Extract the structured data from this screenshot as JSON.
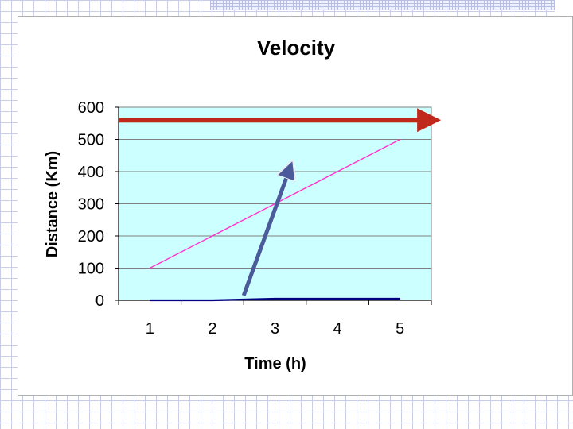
{
  "chart_data": {
    "type": "line",
    "title": "Velocity",
    "xlabel": "Time (h)",
    "ylabel": "Distance (Km)",
    "categories": [
      "1",
      "2",
      "3",
      "4",
      "5"
    ],
    "ylim": [
      0,
      600
    ],
    "yticks": [
      "0",
      "100",
      "200",
      "300",
      "400",
      "500",
      "600"
    ],
    "grid": true,
    "plot_bg_color": "#ccffff",
    "series": [
      {
        "name": "",
        "color": "#ff33cc",
        "values": [
          100,
          200,
          300,
          400,
          500
        ]
      },
      {
        "name": "",
        "color": "#000080",
        "values": [
          0,
          0,
          5,
          5,
          5
        ]
      }
    ],
    "annotations": [
      {
        "type": "arrow",
        "color": "#c0281c",
        "from": [
          0.5,
          560
        ],
        "to": [
          5.4,
          560
        ]
      },
      {
        "type": "arrow",
        "color": "#4a5a9a",
        "from": [
          2.5,
          15
        ],
        "to": [
          3.2,
          400
        ]
      }
    ]
  }
}
